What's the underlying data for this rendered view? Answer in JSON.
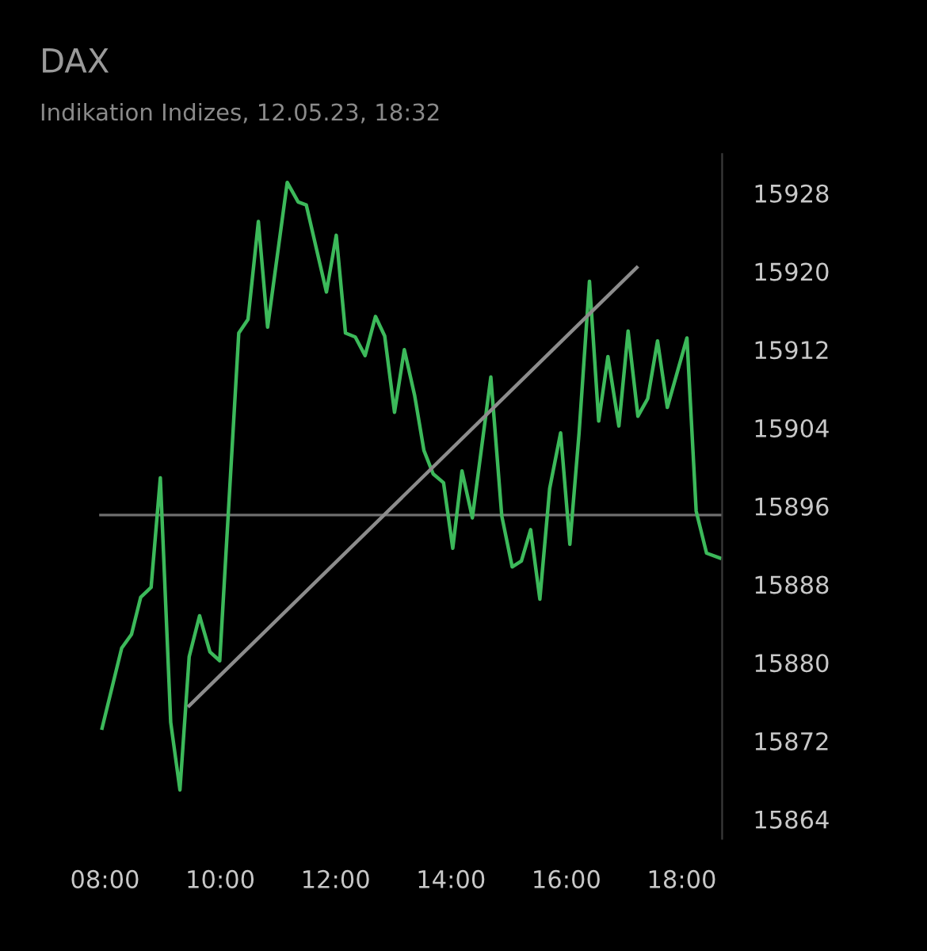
{
  "chart_data": {
    "type": "line",
    "title": "DAX",
    "subtitle": "Indikation Indizes, 12.05.23, 18:32",
    "series": [
      {
        "color": "#3cb95a",
        "x": [
          7.95,
          8.29,
          8.46,
          8.62,
          8.8,
          8.96,
          9.14,
          9.3,
          9.46,
          9.64,
          9.82,
          9.99,
          10.32,
          10.48,
          10.66,
          10.82,
          11.16,
          11.35,
          11.49,
          11.84,
          12.01,
          12.17,
          12.34,
          12.51,
          12.69,
          12.85,
          13.02,
          13.19,
          13.37,
          13.53,
          13.69,
          13.87,
          14.03,
          14.19,
          14.37,
          14.69,
          14.88,
          15.06,
          15.22,
          15.38,
          15.54,
          15.71,
          15.9,
          16.06,
          16.22,
          16.4,
          16.56,
          16.72,
          16.91,
          17.07,
          17.24,
          17.41,
          17.58,
          17.75,
          18.09,
          18.25,
          18.43,
          18.66
        ],
        "values": [
          15873.3,
          15881.5,
          15882.9,
          15886.7,
          15887.7,
          15898.9,
          15873.9,
          15867.0,
          15880.6,
          15884.8,
          15881.1,
          15880.2,
          15913.7,
          15915.1,
          15925.1,
          15914.3,
          15929.1,
          15927.1,
          15926.8,
          15917.9,
          15923.7,
          15913.7,
          15913.3,
          15911.4,
          15915.4,
          15913.4,
          15905.6,
          15912.0,
          15907.3,
          15901.7,
          15899.3,
          15898.4,
          15891.7,
          15899.6,
          15894.8,
          15909.2,
          15895.0,
          15889.8,
          15890.4,
          15893.6,
          15886.5,
          15897.8,
          15903.5,
          15892.1,
          15903.5,
          15919.0,
          15904.7,
          15911.3,
          15904.2,
          15913.9,
          15905.2,
          15907.0,
          15912.9,
          15906.1,
          15913.2,
          15895.5,
          15891.2,
          15890.7
        ]
      },
      {
        "type": "line",
        "color": "#8c8c8c",
        "x": [
          9.46,
          17.22
        ],
        "values": [
          15875.6,
          15920.4
        ]
      }
    ],
    "ref_lines": [
      {
        "axis": "y",
        "value": 15895.1,
        "color": "#6e6e6e"
      }
    ],
    "xlim": [
      7.9,
      18.7
    ],
    "ylim": [
      15862,
      15932
    ],
    "xticks": [
      {
        "value": 8,
        "label": "08:00"
      },
      {
        "value": 10,
        "label": "10:00"
      },
      {
        "value": 12,
        "label": "12:00"
      },
      {
        "value": 14,
        "label": "14:00"
      },
      {
        "value": 16,
        "label": "16:00"
      },
      {
        "value": 18,
        "label": "18:00"
      }
    ],
    "yticks": [
      15864,
      15872,
      15880,
      15888,
      15896,
      15904,
      15912,
      15920,
      15928
    ],
    "grid": false,
    "legend": false,
    "marker": "none",
    "line_style": "solid"
  }
}
